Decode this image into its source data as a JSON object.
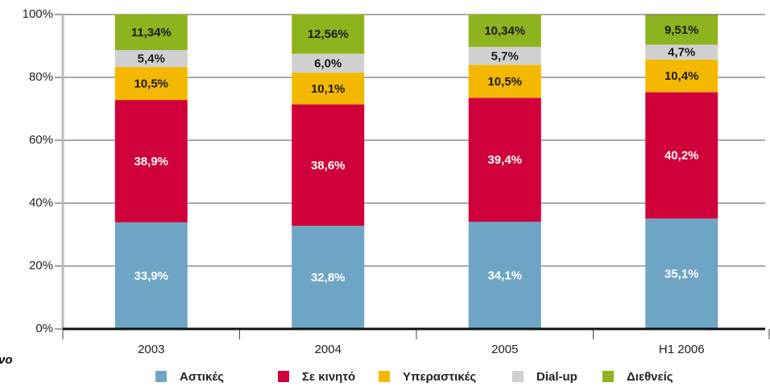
{
  "chart_data": {
    "type": "stacked_bar",
    "categories": [
      "2003",
      "2004",
      "2005",
      "H1 2006"
    ],
    "series": [
      {
        "name": "Αστικές",
        "color": "#6fa5c4",
        "label_color": "#ffffff",
        "values": [
          33.9,
          32.8,
          34.1,
          35.1
        ],
        "value_labels": [
          "33,9%",
          "32,8%",
          "34,1%",
          "35,1%"
        ]
      },
      {
        "name": "Σε κινητό",
        "color": "#d0003a",
        "label_color": "#ffffff",
        "values": [
          38.9,
          38.6,
          39.4,
          40.2
        ],
        "value_labels": [
          "38,9%",
          "38,6%",
          "39,4%",
          "40,2%"
        ]
      },
      {
        "name": "Υπεραστικές",
        "color": "#f5b800",
        "label_color": "#1a1a1a",
        "values": [
          10.5,
          10.1,
          10.5,
          10.4
        ],
        "value_labels": [
          "10,5%",
          "10,1%",
          "10,5%",
          "10,4%"
        ]
      },
      {
        "name": "Dial-up",
        "color": "#d0d0d0",
        "label_color": "#1a1a1a",
        "values": [
          5.4,
          6.0,
          5.7,
          4.7
        ],
        "value_labels": [
          "5,4%",
          "6,0%",
          "5,7%",
          "4,7%"
        ]
      },
      {
        "name": "Διεθνείς",
        "color": "#8db31e",
        "label_color": "#1a1a1a",
        "values": [
          11.34,
          12.56,
          10.34,
          9.51
        ],
        "value_labels": [
          "11,34%",
          "12,56%",
          "10,34%",
          "9,51%"
        ]
      }
    ],
    "ylim": [
      0,
      100
    ],
    "yticks": [
      {
        "value": 0,
        "label": "0%"
      },
      {
        "value": 20,
        "label": "20%"
      },
      {
        "value": 40,
        "label": "40%"
      },
      {
        "value": 60,
        "label": "60%"
      },
      {
        "value": 80,
        "label": "80%"
      },
      {
        "value": 100,
        "label": "100%"
      }
    ],
    "grid": true,
    "legend": "bottom",
    "note": "νο"
  }
}
